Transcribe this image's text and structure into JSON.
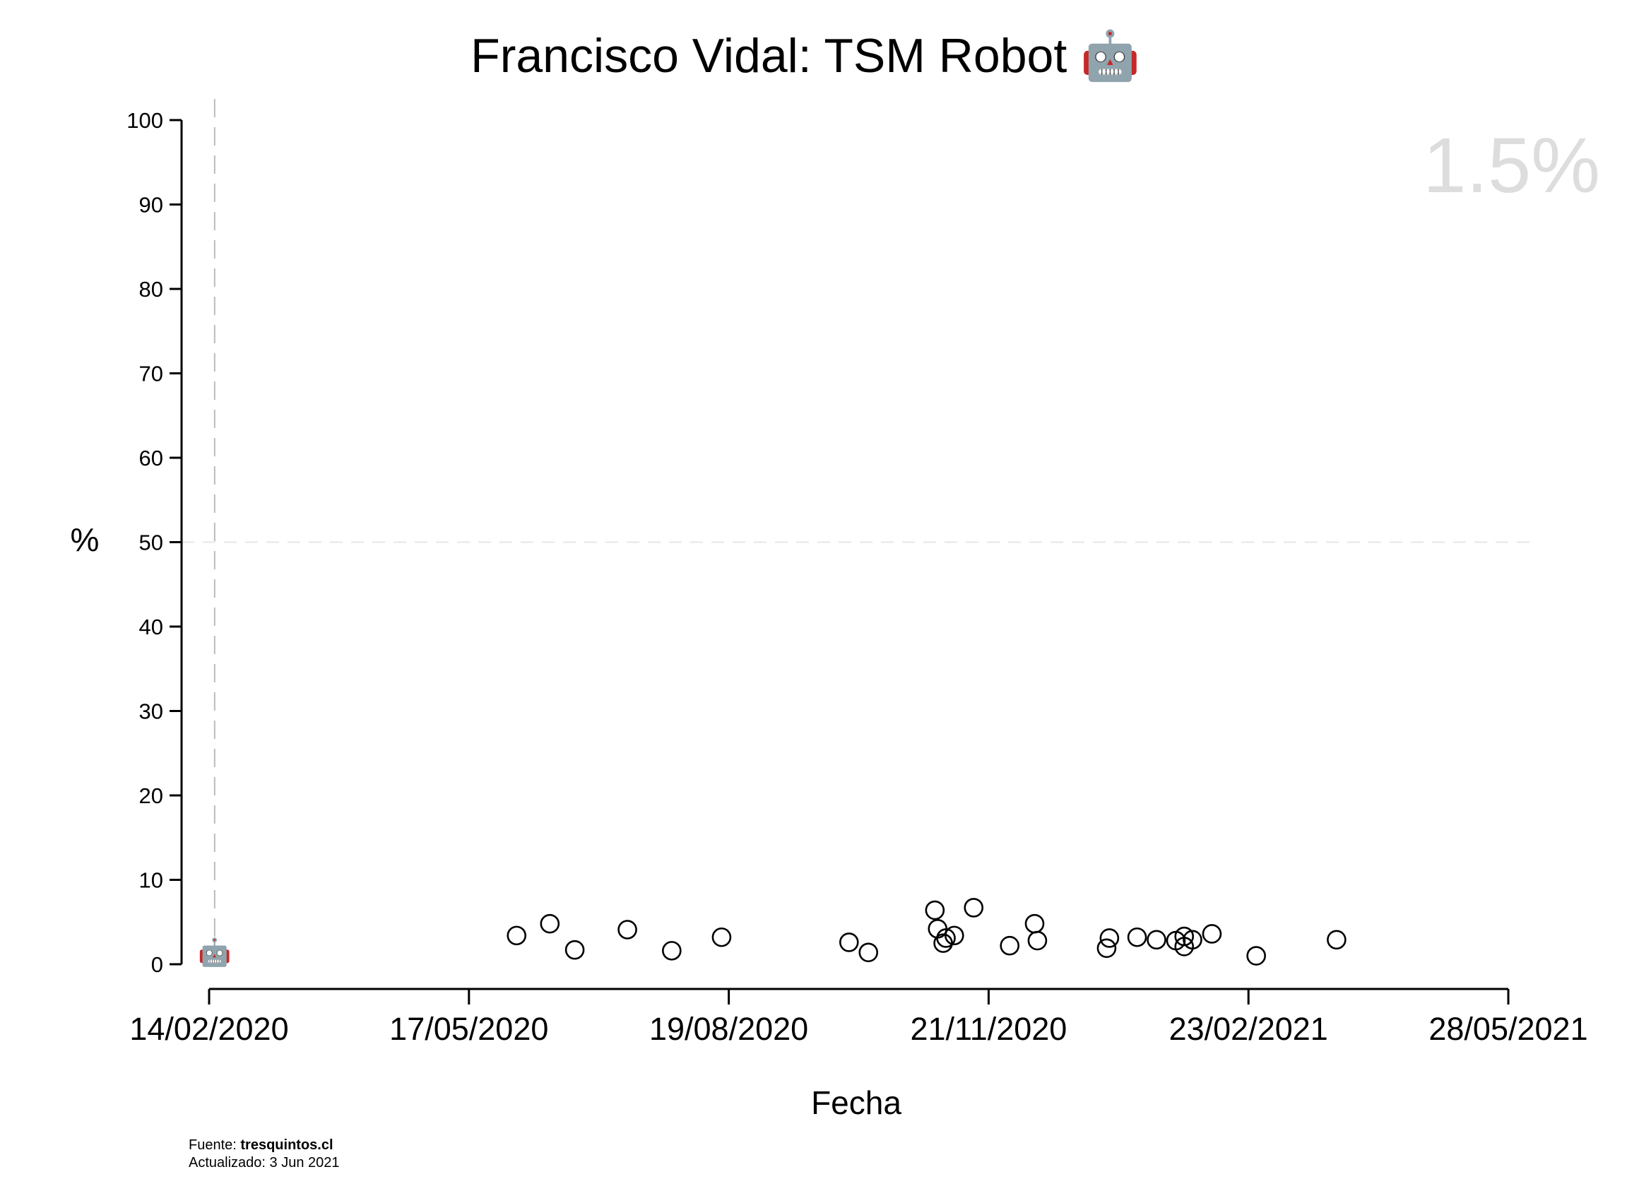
{
  "chart_data": {
    "type": "scatter",
    "title": "Francisco Vidal: TSM Robot",
    "title_emoji": "🤖",
    "xlabel": "Fecha",
    "ylabel": "%",
    "highlight_value": "1.5%",
    "ylim": [
      0,
      100
    ],
    "y_ticks": [
      "0",
      "10",
      "20",
      "30",
      "40",
      "50",
      "60",
      "70",
      "80",
      "90",
      "100"
    ],
    "x_ticks": [
      "14/02/2020",
      "17/05/2020",
      "19/08/2020",
      "21/11/2020",
      "23/02/2021",
      "28/05/2021"
    ],
    "x_range": [
      "2020-02-14",
      "2021-05-28"
    ],
    "reference_line_y": 50,
    "reference_line_x": "2020-02-16",
    "marker_emoji": "🤖",
    "marker_point": {
      "x": "2020-02-16",
      "y": 1.5
    },
    "points": [
      {
        "x": "2020-06-04",
        "y": 3.4
      },
      {
        "x": "2020-06-16",
        "y": 4.8
      },
      {
        "x": "2020-06-25",
        "y": 1.7
      },
      {
        "x": "2020-07-14",
        "y": 4.1
      },
      {
        "x": "2020-07-30",
        "y": 1.6
      },
      {
        "x": "2020-08-17",
        "y": 3.2
      },
      {
        "x": "2020-10-02",
        "y": 2.6
      },
      {
        "x": "2020-10-09",
        "y": 1.4
      },
      {
        "x": "2020-11-02",
        "y": 6.4
      },
      {
        "x": "2020-11-03",
        "y": 4.2
      },
      {
        "x": "2020-11-05",
        "y": 2.5
      },
      {
        "x": "2020-11-06",
        "y": 3.1
      },
      {
        "x": "2020-11-09",
        "y": 3.4
      },
      {
        "x": "2020-11-16",
        "y": 6.7
      },
      {
        "x": "2020-11-29",
        "y": 2.2
      },
      {
        "x": "2020-12-08",
        "y": 4.8
      },
      {
        "x": "2020-12-09",
        "y": 2.8
      },
      {
        "x": "2021-01-03",
        "y": 1.9
      },
      {
        "x": "2021-01-04",
        "y": 3.1
      },
      {
        "x": "2021-01-14",
        "y": 3.2
      },
      {
        "x": "2021-01-21",
        "y": 2.9
      },
      {
        "x": "2021-01-28",
        "y": 2.8
      },
      {
        "x": "2021-01-31",
        "y": 3.3
      },
      {
        "x": "2021-01-31",
        "y": 2.1
      },
      {
        "x": "2021-02-03",
        "y": 2.9
      },
      {
        "x": "2021-02-10",
        "y": 3.6
      },
      {
        "x": "2021-02-26",
        "y": 1.0
      },
      {
        "x": "2021-03-27",
        "y": 2.9
      }
    ]
  },
  "footer": {
    "source_label": "Fuente: ",
    "source_value": "tresquintos.cl",
    "updated": "Actualizado: 3 Jun 2021"
  }
}
